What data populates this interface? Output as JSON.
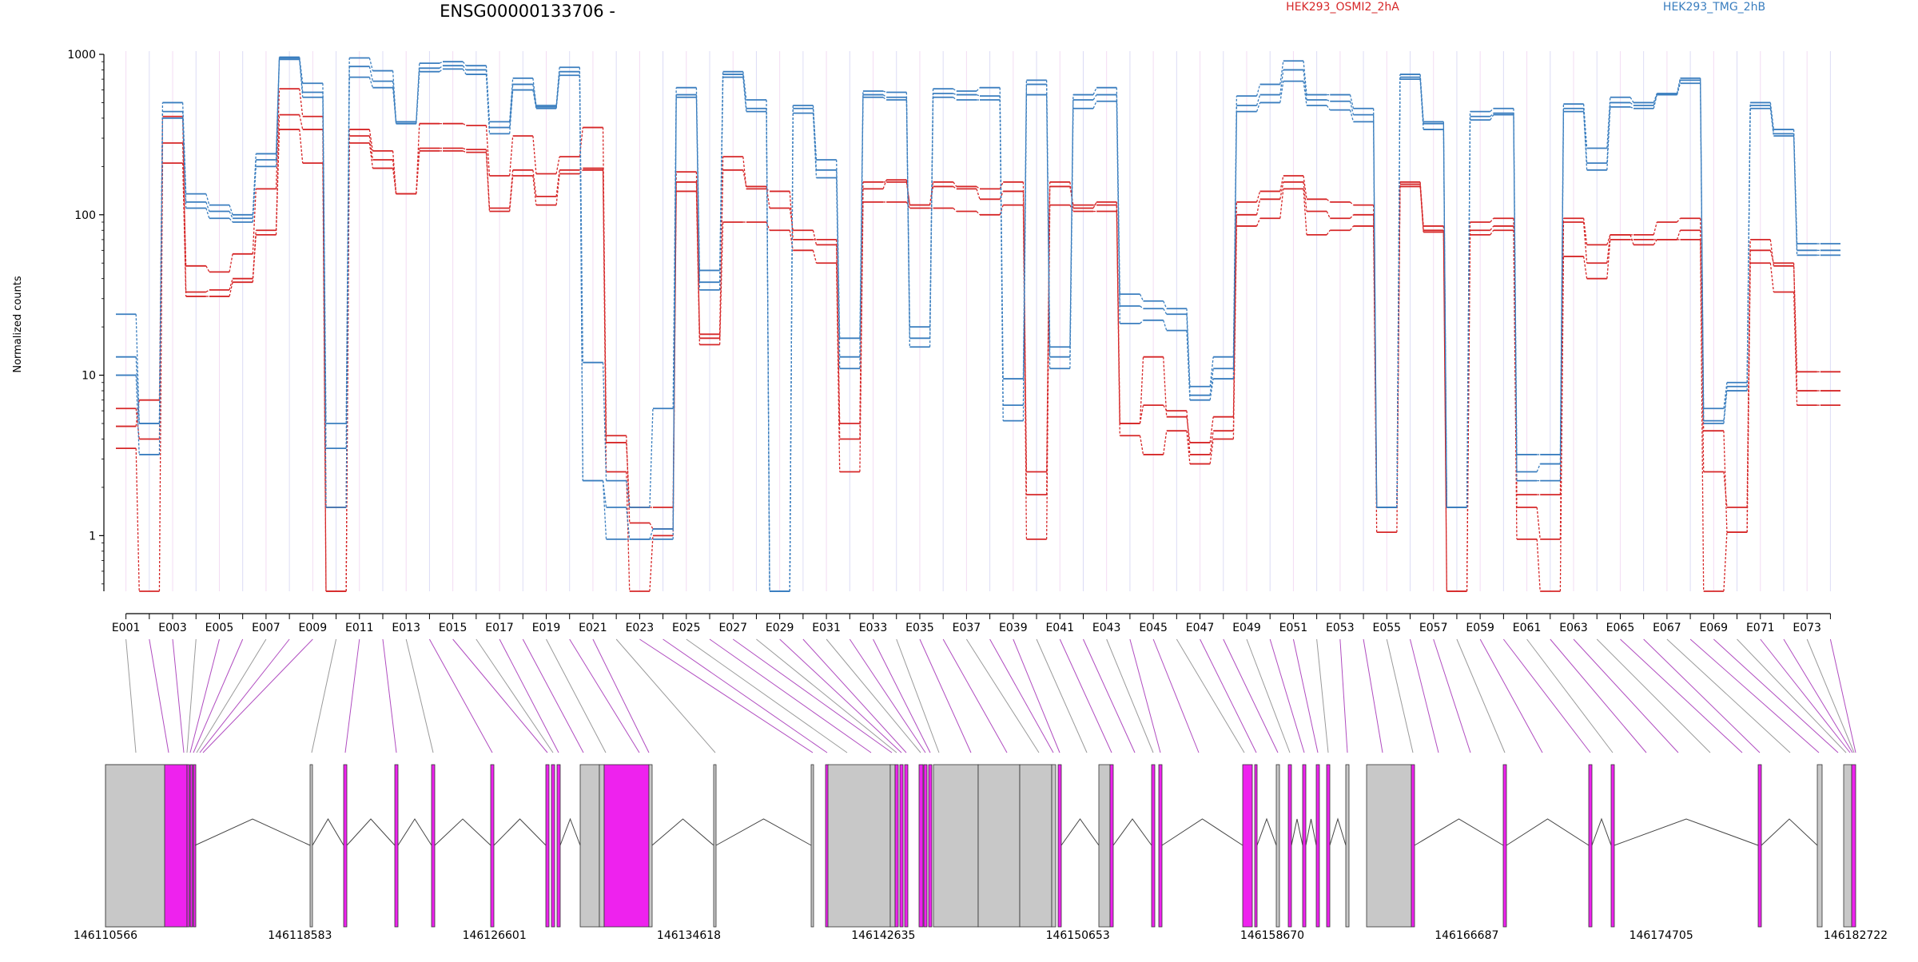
{
  "chart_data": {
    "type": "line",
    "title": "ENSG00000133706 -",
    "ylabel": "Normalized counts",
    "yscale": "log",
    "ylim": [
      0.45,
      1000
    ],
    "yticks": [
      1,
      10,
      100,
      1000
    ],
    "ytick_labels": [
      "1",
      "10",
      "100",
      "1000"
    ],
    "exon_count": 74,
    "x_tick_labels": [
      "E001",
      "E003",
      "E005",
      "E007",
      "E009",
      "E011",
      "E013",
      "E015",
      "E017",
      "E019",
      "E021",
      "E023",
      "E025",
      "E027",
      "E029",
      "E031",
      "E033",
      "E035",
      "E037",
      "E039",
      "E041",
      "E043",
      "E045",
      "E047",
      "E049",
      "E051",
      "E053",
      "E055",
      "E057",
      "E059",
      "E061",
      "E063",
      "E065",
      "E067",
      "E069",
      "E071",
      "E073"
    ],
    "legend": [
      {
        "name": "HEK293_OSMI2_2hA",
        "color": "#d62728"
      },
      {
        "name": "HEK293_TMG_2hB",
        "color": "#3a7ebf"
      }
    ],
    "groups": [
      {
        "name": "HEK293_OSMI2_2hA",
        "color": "#d62728",
        "replicates": [
          [
            6.2,
            4,
            280,
            48,
            44,
            57,
            145,
            610,
            410,
            1.5,
            310,
            220,
            135,
            370,
            370,
            360,
            175,
            310,
            180,
            230,
            350,
            3.8,
            1.5,
            1.5,
            185,
            17,
            230,
            145,
            140,
            70,
            70,
            4,
            145,
            165,
            115,
            160,
            150,
            145,
            160,
            1.8,
            150,
            115,
            115,
            5,
            13,
            5.5,
            3.8,
            5.5,
            120,
            140,
            175,
            125,
            120,
            115,
            1.5,
            160,
            85,
            1.5,
            90,
            95,
            1.8,
            1.8,
            95,
            65,
            75,
            75,
            90,
            95,
            2.5,
            1.5,
            70,
            48,
            10.5,
            10.5
          ],
          [
            4.8,
            7,
            410,
            33,
            34,
            40,
            80,
            420,
            340,
            0.45,
            340,
            250,
            135,
            260,
            260,
            255,
            110,
            190,
            130,
            190,
            195,
            4.2,
            1.2,
            1.1,
            160,
            18,
            190,
            150,
            110,
            80,
            65,
            5,
            160,
            160,
            115,
            150,
            145,
            125,
            140,
            2.5,
            160,
            110,
            120,
            5,
            6.5,
            6,
            3.2,
            4.5,
            100,
            125,
            160,
            105,
            95,
            100,
            1.5,
            155,
            80,
            0.45,
            80,
            85,
            1.5,
            0.95,
            90,
            50,
            75,
            65,
            70,
            80,
            4.5,
            1.05,
            60,
            50,
            8,
            8
          ],
          [
            3.5,
            0.45,
            210,
            31,
            31,
            38,
            75,
            340,
            210,
            0.45,
            280,
            195,
            135,
            250,
            250,
            245,
            105,
            175,
            115,
            180,
            190,
            2.5,
            0.45,
            1.0,
            140,
            15.5,
            90,
            90,
            80,
            60,
            50,
            2.5,
            120,
            120,
            110,
            110,
            105,
            100,
            115,
            0.95,
            115,
            105,
            105,
            4.2,
            3.2,
            4.5,
            2.8,
            4,
            85,
            95,
            145,
            75,
            80,
            85,
            1.05,
            150,
            78,
            0.45,
            75,
            80,
            0.95,
            0.45,
            55,
            40,
            70,
            70,
            70,
            70,
            0.45,
            1.05,
            50,
            33,
            6.5,
            6.5
          ]
        ]
      },
      {
        "name": "HEK293_TMG_2hB",
        "color": "#3a7ebf",
        "replicates": [
          [
            24,
            5,
            500,
            135,
            115,
            100,
            240,
            960,
            660,
            5,
            950,
            790,
            380,
            880,
            900,
            850,
            380,
            710,
            480,
            830,
            12,
            2.2,
            1.5,
            6.2,
            620,
            45,
            780,
            520,
            0.45,
            480,
            220,
            17,
            590,
            580,
            20,
            610,
            590,
            620,
            9.5,
            690,
            15,
            560,
            620,
            32,
            29,
            26,
            8.5,
            13,
            550,
            650,
            910,
            560,
            560,
            460,
            1.5,
            750,
            380,
            1.5,
            440,
            460,
            3.2,
            3.2,
            490,
            260,
            540,
            500,
            570,
            710,
            6.2,
            9,
            500,
            340,
            66,
            66
          ],
          [
            13,
            5,
            440,
            120,
            105,
            95,
            220,
            950,
            580,
            3.5,
            840,
            680,
            370,
            820,
            850,
            800,
            350,
            650,
            470,
            780,
            2.2,
            1.5,
            0.95,
            1.1,
            560,
            38,
            750,
            460,
            0.45,
            460,
            190,
            13,
            560,
            540,
            17,
            570,
            560,
            550,
            6.5,
            650,
            13,
            520,
            560,
            27,
            26,
            24,
            7.5,
            11,
            480,
            560,
            800,
            520,
            510,
            420,
            1.5,
            720,
            370,
            1.5,
            410,
            430,
            2.5,
            2.8,
            460,
            210,
            500,
            480,
            560,
            690,
            5.2,
            8.5,
            480,
            320,
            60,
            60
          ],
          [
            10,
            3.2,
            400,
            110,
            95,
            90,
            200,
            930,
            540,
            1.5,
            720,
            620,
            370,
            780,
            810,
            750,
            320,
            600,
            460,
            740,
            2.2,
            0.95,
            0.95,
            0.95,
            540,
            34,
            720,
            440,
            0.45,
            430,
            170,
            11,
            540,
            520,
            15,
            540,
            520,
            520,
            5.2,
            560,
            11,
            460,
            510,
            21,
            22,
            19,
            7,
            9.5,
            440,
            500,
            680,
            480,
            450,
            380,
            1.5,
            700,
            340,
            1.5,
            390,
            420,
            2.2,
            2.2,
            440,
            190,
            470,
            460,
            560,
            660,
            5,
            8,
            460,
            310,
            56,
            56
          ]
        ]
      }
    ],
    "gene_model": {
      "genomic_axis_labels": [
        "146110566",
        "146118583",
        "146126601",
        "146134618",
        "146142635",
        "146150653",
        "146158670",
        "146166687",
        "146174705",
        "146182722"
      ],
      "connector_color": "#b04cc0",
      "exon_colors": {
        "grey": "#c8c8c8",
        "magenta": "#ee22ee"
      }
    }
  }
}
